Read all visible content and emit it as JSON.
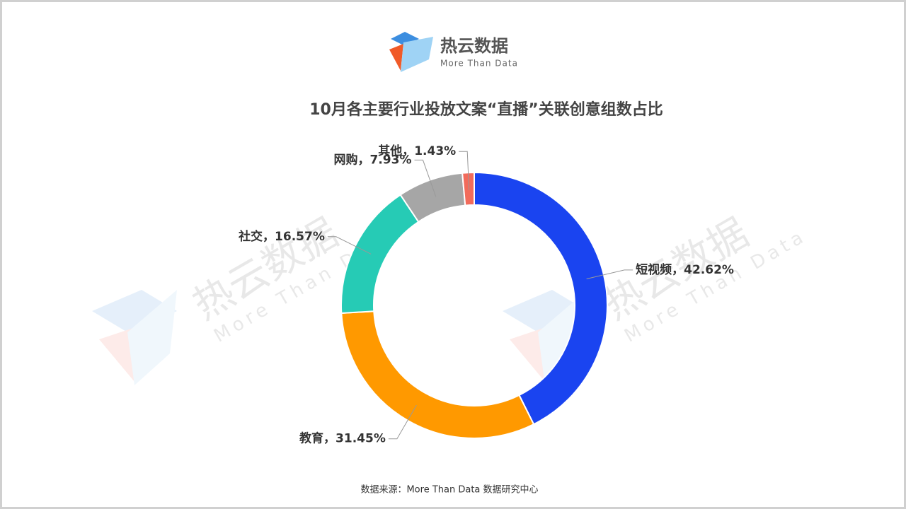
{
  "brand": {
    "name": "热云数据",
    "tagline": "More Than Data"
  },
  "chart_data": {
    "type": "pie",
    "title": "10月各主要行业投放文案“直播”关联创意组数占比",
    "values": [
      42.62,
      31.45,
      16.57,
      7.93,
      1.43
    ],
    "value_labels": [
      "短视频，42.62%",
      "教育，31.45%",
      "社交，16.57%",
      "网购，7.93%",
      "其他，1.43%"
    ],
    "colors": [
      "#1a44f0",
      "#ff9900",
      "#26cbb5",
      "#a6a6a6",
      "#f26b5b"
    ],
    "donut": true
  },
  "source": "数据来源：More Than Data 数据研究中心"
}
